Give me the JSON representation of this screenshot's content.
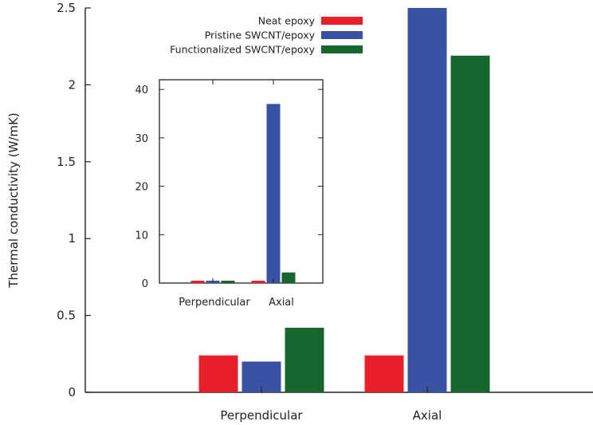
{
  "chart_data": [
    {
      "type": "bar",
      "title": "",
      "xlabel": "",
      "ylabel": "Thermal conductivity (W/mK)",
      "categories": [
        "Perpendicular",
        "Axial"
      ],
      "ylim": [
        0,
        2.5
      ],
      "yticks": [
        "0",
        "0.5",
        "1",
        "1.5",
        "2",
        "2.5"
      ],
      "grid": false,
      "legend_position": "top-left inside",
      "series": [
        {
          "name": "Neat epoxy",
          "color": "#e8202a",
          "values": [
            0.24,
            0.24
          ]
        },
        {
          "name": "Pristine SWCNT/epoxy",
          "color": "#3852a4",
          "values": [
            0.2,
            2.5
          ]
        },
        {
          "name": "Functionalized SWCNT/epoxy",
          "color": "#17662e",
          "values": [
            0.42,
            2.19
          ]
        }
      ]
    },
    {
      "type": "bar",
      "title": "",
      "xlabel": "",
      "ylabel": "",
      "inset": true,
      "categories": [
        "Perpendicular",
        "Axial"
      ],
      "ylim": [
        0,
        42
      ],
      "yticks": [
        "0",
        "10",
        "20",
        "30",
        "40"
      ],
      "grid": false,
      "series": [
        {
          "name": "Neat epoxy",
          "color": "#e8202a",
          "values": [
            0.24,
            0.24
          ]
        },
        {
          "name": "Pristine SWCNT/epoxy",
          "color": "#3852a4",
          "values": [
            0.2,
            37
          ]
        },
        {
          "name": "Functionalized SWCNT/epoxy",
          "color": "#17662e",
          "values": [
            0.42,
            2.19
          ]
        }
      ]
    }
  ]
}
